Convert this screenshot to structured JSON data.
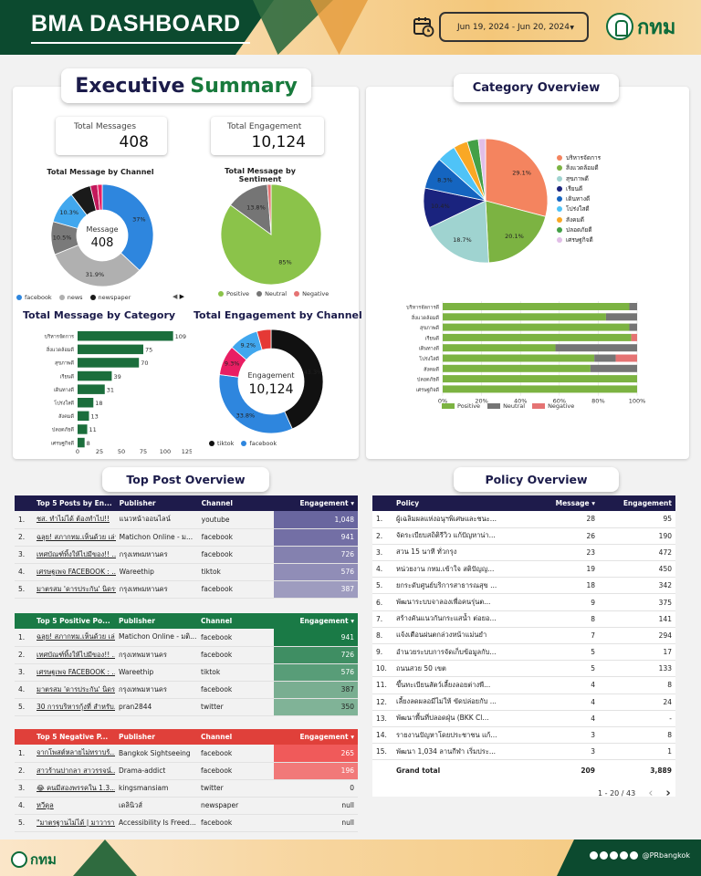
{
  "header": {
    "title": "BMA DASHBOARD",
    "date_range": "Jun 19, 2024 - Jun 20, 2024",
    "logo_text": "กทม"
  },
  "executive": {
    "title_part1": "Executive",
    "title_part2": "Summary",
    "kpi_messages_label": "Total Messages",
    "kpi_messages_value": "408",
    "kpi_engagement_label": "Total Engagement",
    "kpi_engagement_value": "10,124",
    "channel_title": "Total Message by Channel",
    "channel_center_label": "Message",
    "channel_center_value": "408",
    "sentiment_title": "Total Message by Sentiment",
    "category_title": "Total Message by Category",
    "engagement_title": "Total Engagement by Channel",
    "engagement_center_label": "Engagement",
    "engagement_center_value": "10,124"
  },
  "category_overview": {
    "title": "Category Overview"
  },
  "colors": {
    "facebook": "#2e86de",
    "news": "#b0b0b0",
    "newspaper": "#1a1a1a",
    "positive": "#8bc34a",
    "neutral": "#757575",
    "negative": "#e57373",
    "tiktok": "#111111",
    "bar_green": "#1b6e3c"
  },
  "chart_data": [
    {
      "type": "pie",
      "title": "Total Message by Channel",
      "legend": [
        "facebook",
        "news",
        "newspaper"
      ],
      "slices": [
        {
          "name": "facebook",
          "value": 37.0,
          "label": "37%",
          "color": "#2e86de"
        },
        {
          "name": "news",
          "value": 31.9,
          "label": "31.9%",
          "color": "#b0b0b0"
        },
        {
          "name": "s3",
          "value": 10.5,
          "label": "10.5%",
          "color": "#7a7a7a"
        },
        {
          "name": "s4",
          "value": 10.3,
          "label": "10.3%",
          "color": "#41a7ee"
        },
        {
          "name": "newspaper",
          "value": 6.5,
          "label": "",
          "color": "#1a1a1a"
        },
        {
          "name": "s6",
          "value": 2.3,
          "label": "",
          "color": "#c2185b"
        },
        {
          "name": "s7",
          "value": 1.5,
          "label": "",
          "color": "#e91e63"
        }
      ]
    },
    {
      "type": "pie",
      "title": "Total Message by Sentiment",
      "legend": [
        "Positive",
        "Neutral",
        "Negative"
      ],
      "slices": [
        {
          "name": "Positive",
          "value": 85,
          "label": "85%",
          "color": "#8bc34a"
        },
        {
          "name": "Neutral",
          "value": 13.8,
          "label": "13.8%",
          "color": "#757575"
        },
        {
          "name": "Negative",
          "value": 1.2,
          "label": "",
          "color": "#e57373"
        }
      ]
    },
    {
      "type": "bar",
      "title": "Total Message by Category",
      "categories": [
        "บริหารจัดการ",
        "สิ่งแวดล้อมดี",
        "สุขภาพดี",
        "เรียนดี",
        "เดินทางดี",
        "โปร่งใสดี",
        "สังคมดี",
        "ปลอดภัยดี",
        "เศรษฐกิจดี"
      ],
      "values": [
        109,
        75,
        70,
        39,
        31,
        18,
        13,
        11,
        8
      ],
      "xticks": [
        "0",
        "25",
        "50",
        "75",
        "100",
        "125"
      ],
      "xlim": [
        0,
        125
      ]
    },
    {
      "type": "pie",
      "title": "Total Engagement by Channel",
      "legend": [
        "tiktok",
        "facebook"
      ],
      "slices": [
        {
          "name": "tiktok",
          "value": 43.3,
          "label": "43.3%",
          "color": "#111111"
        },
        {
          "name": "facebook",
          "value": 33.8,
          "label": "33.8%",
          "color": "#2e86de"
        },
        {
          "name": "s3",
          "value": 9.3,
          "label": "9.3%",
          "color": "#e91e63"
        },
        {
          "name": "s4",
          "value": 9.2,
          "label": "9.2%",
          "color": "#41a7ee"
        },
        {
          "name": "s5",
          "value": 4.4,
          "label": "",
          "color": "#e53935"
        }
      ]
    },
    {
      "type": "pie",
      "title": "Category Overview",
      "legend": [
        "บริหารจัดการ",
        "สิ่งแวดล้อมดี",
        "สุขภาพดี",
        "เรียนดี",
        "เดินทางดี",
        "โปร่งใสดี",
        "สังคมดี",
        "ปลอดภัยดี",
        "เศรษฐกิจดี"
      ],
      "slices": [
        {
          "name": "บริหารจัดการ",
          "value": 29.1,
          "label": "29.1%",
          "color": "#f4845f"
        },
        {
          "name": "สิ่งแวดล้อมดี",
          "value": 20.1,
          "label": "20.1%",
          "color": "#7cb342"
        },
        {
          "name": "สุขภาพดี",
          "value": 18.7,
          "label": "18.7%",
          "color": "#9fd3d0"
        },
        {
          "name": "เรียนดี",
          "value": 10.4,
          "label": "10.4%",
          "color": "#1a237e"
        },
        {
          "name": "เดินทางดี",
          "value": 8.3,
          "label": "8.3%",
          "color": "#1565c0"
        },
        {
          "name": "โปร่งใสดี",
          "value": 4.9,
          "label": "",
          "color": "#4fc3f7"
        },
        {
          "name": "สังคมดี",
          "value": 3.7,
          "label": "",
          "color": "#f9a825"
        },
        {
          "name": "ปลอดภัยดี",
          "value": 2.9,
          "label": "",
          "color": "#43a047"
        },
        {
          "name": "เศรษฐกิจดี",
          "value": 1.9,
          "label": "",
          "color": "#e1bee7"
        }
      ]
    },
    {
      "type": "bar",
      "title": "Category Overview sentiment",
      "categories": [
        "บริหารจัดการดี",
        "สิ่งแวดล้อมดี",
        "สุขภาพดี",
        "เรียนดี",
        "เดินทางดี",
        "โปร่งใสดี",
        "สังคมดี",
        "ปลอดภัยดี",
        "เศรษฐกิจดี"
      ],
      "series": [
        {
          "name": "Positive",
          "values": [
            96,
            84,
            96,
            97,
            58,
            78,
            76,
            100,
            100
          ],
          "color": "#7cb342"
        },
        {
          "name": "Neutral",
          "values": [
            4,
            16,
            4,
            0,
            42,
            11,
            24,
            0,
            0
          ],
          "color": "#757575"
        },
        {
          "name": "Negative",
          "values": [
            0,
            0,
            0,
            3,
            0,
            11,
            0,
            0,
            0
          ],
          "color": "#e57373"
        }
      ],
      "xticks": [
        "0%",
        "20%",
        "40%",
        "60%",
        "80%",
        "100%"
      ],
      "xlim": [
        0,
        100
      ]
    }
  ],
  "top_post": {
    "title": "Top Post Overview",
    "headers": [
      "Top 5 Posts by En...",
      "Publisher",
      "Channel",
      "Engagement ▾"
    ],
    "rows": [
      [
        "1.",
        "ชส. ทำไม่ได้ ต้องทำไป!!",
        "แนวหน้าออนไลน์",
        "youtube",
        "1,048"
      ],
      [
        "2.",
        "ฉลุย! สภากทม.เห็นด้วย เล่า...",
        "Matichon Online - ม...",
        "facebook",
        "941"
      ],
      [
        "3.",
        "เทศบัณฑ์ทิ้งให้ไปมีของ!! ...",
        "กรุงเทพมหานคร",
        "facebook",
        "726"
      ],
      [
        "4.",
        "เศรษฐเพจ FACEBOOK : ...",
        "Wareethip",
        "tiktok",
        "576"
      ],
      [
        "5.",
        "มาตรสม 'ดารประกัน' นิดรร...",
        "กรุงเทพมหานคร",
        "facebook",
        "387"
      ]
    ],
    "bar_fill": [
      1.0,
      0.9,
      0.69,
      0.55,
      0.37
    ]
  },
  "top_positive": {
    "headers": [
      "Top 5 Positive Po...",
      "Publisher",
      "Channel",
      "Engagement ▾"
    ],
    "rows": [
      [
        "1.",
        "ฉลุย! สภากทม.เห็นด้วย เล่...",
        "Matichon Online - มติ...",
        "facebook",
        "941"
      ],
      [
        "2.",
        "เทศบัณฑ์ทิ้งให้ไปมีของ!! ...",
        "กรุงเทพมหานคร",
        "facebook",
        "726"
      ],
      [
        "3.",
        "เศรษฐเพจ FACEBOOK : ...",
        "Wareethip",
        "tiktok",
        "576"
      ],
      [
        "4.",
        "มาตรสม 'ดารประกัน' นิดรร...",
        "กรุงเทพมหานคร",
        "facebook",
        "387"
      ],
      [
        "5.",
        "30 การบริหารกุ้งที่ สำหรับ...",
        "pran2844",
        "twitter",
        "350"
      ]
    ],
    "bar_fill": [
      1.0,
      0.77,
      0.61,
      0.41,
      0.37
    ]
  },
  "top_negative": {
    "headers": [
      "Top 5 Negative P...",
      "Publisher",
      "Channel",
      "Engagement ▾"
    ],
    "rows": [
      [
        "1.",
        "จากโพสต์หลายไม่ทราบร้...",
        "Bangkok Sightseeing",
        "facebook",
        "265"
      ],
      [
        "2.",
        "สาวร้านปากลา สาวรรจน์...",
        "Drama-addict",
        "facebook",
        "196"
      ],
      [
        "3.",
        "😂 คนมีสองพรรคใน 1.3...",
        "kingsmansiam",
        "twitter",
        "0"
      ],
      [
        "4.",
        "หวีคูล",
        "เดลินิวส์",
        "newspaper",
        "null"
      ],
      [
        "5.",
        "\"มาตรฐานไม่ได้ | มาวาราย\"...",
        "Accessibility Is Freed...",
        "facebook",
        "null"
      ]
    ],
    "bar_fill": [
      1.0,
      0.74,
      0,
      0,
      0
    ]
  },
  "policy": {
    "title": "Policy Overview",
    "headers": [
      "Policy",
      "Message ▾",
      "Engagement"
    ],
    "rows": [
      [
        "1.",
        "ผู้เฉลิมผลแห่งอนุฯพิเศษและชนะ...",
        "28",
        "95"
      ],
      [
        "2.",
        "จัดระเบียบสถิติรีวิว แก้ปัญหาน่า...",
        "26",
        "190"
      ],
      [
        "3.",
        "สวน 15 นาที ทั่วกรุง",
        "23",
        "472"
      ],
      [
        "4.",
        "หน่วยงาน กทม.เข้าใจ สติปัญญ...",
        "19",
        "450"
      ],
      [
        "5.",
        "ยกระดับศูนย์บริการสาธารณสุข ...",
        "18",
        "342"
      ],
      [
        "6.",
        "พัฒนาระบบจาลองเพื่อคนรุ่นต...",
        "9",
        "375"
      ],
      [
        "7.",
        "สร้างคันแนวกันกระแสน้ำ ต่อยอ...",
        "8",
        "141"
      ],
      [
        "8.",
        "แจ้งเตือนฝนตกล่วงหน้าแม่นยำ",
        "7",
        "294"
      ],
      [
        "9.",
        "อำนวยระบบการจัดเก็บข้อมูลกับ...",
        "5",
        "17"
      ],
      [
        "10.",
        "ถนนสวย 50 เขต",
        "5",
        "133"
      ],
      [
        "11.",
        "ขึ้นทะเบียนสัตว์เลี้ยงลอยต่างพื...",
        "4",
        "8"
      ],
      [
        "12.",
        "เลี้ยงลดผลอมีไม่ให้ ขัดปล่อยกับ ...",
        "4",
        "24"
      ],
      [
        "13.",
        "พัฒนาพื้นที่ปลอดฝุ่น (BKK Cl...",
        "4",
        "-"
      ],
      [
        "14.",
        "รายงานปัญหาโดยประชาชน แก้...",
        "3",
        "8"
      ],
      [
        "15.",
        "พัฒนา 1,034 ลานกีฬา เริ่มประ...",
        "3",
        "1"
      ]
    ],
    "grand_total_label": "Grand total",
    "grand_total_message": "209",
    "grand_total_engagement": "3,889",
    "pager": "1 - 20 / 43",
    "prev": "‹",
    "next": "›"
  },
  "footer": {
    "logo_text": "กทม",
    "handle": "@PRbangkok"
  }
}
